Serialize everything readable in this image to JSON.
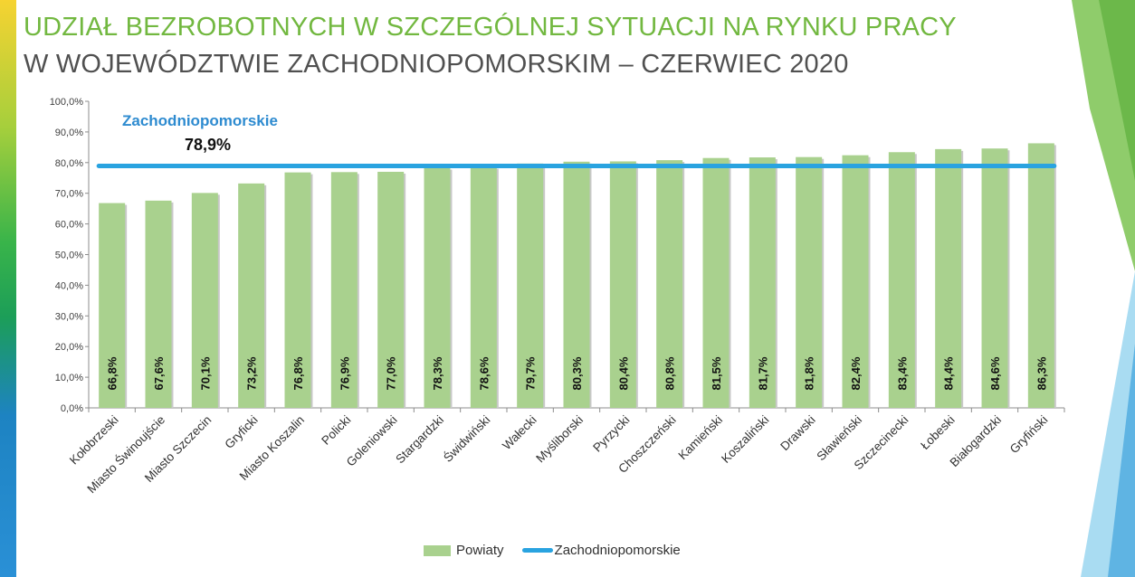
{
  "slide": {
    "title_line1": "UDZIAŁ BEZROBOTNYCH W SZCZEGÓLNEJ SYTUACJI NA RYNKU PRACY",
    "title_line2": "W WOJEWÓDZTWIE ZACHODNIOPOMORSKIM – CZERWIEC 2020"
  },
  "colors": {
    "title_green": "#72b840",
    "bar": "#a9d18e",
    "line": "#29a3e0",
    "avg_label": "#2e8bd0"
  },
  "chart_data": {
    "type": "bar",
    "categories": [
      "Kołobrzeski",
      "Miasto Świnoujście",
      "Miasto Szczecin",
      "Gryficki",
      "Miasto Koszalin",
      "Policki",
      "Goleniowski",
      "Stargardzki",
      "Świdwiński",
      "Wałecki",
      "Myśliborski",
      "Pyrzycki",
      "Choszczeński",
      "Kamieński",
      "Koszaliński",
      "Drawski",
      "Sławieński",
      "Szczecinecki",
      "Łobeski",
      "Białogardzki",
      "Gryfiński"
    ],
    "series": [
      {
        "name": "Powiaty",
        "values": [
          66.8,
          67.6,
          70.1,
          73.2,
          76.8,
          76.9,
          77.0,
          78.3,
          78.6,
          79.7,
          80.3,
          80.4,
          80.8,
          81.5,
          81.7,
          81.8,
          82.4,
          83.4,
          84.4,
          84.6,
          86.3
        ]
      },
      {
        "name": "Zachodniopomorskie",
        "value": 78.9
      }
    ],
    "data_labels": [
      "66,8%",
      "67,6%",
      "70,1%",
      "73,2%",
      "76,8%",
      "76,9%",
      "77,0%",
      "78,3%",
      "78,6%",
      "79,7%",
      "80,3%",
      "80,4%",
      "80,8%",
      "81,5%",
      "81,7%",
      "81,8%",
      "82,4%",
      "83,4%",
      "84,4%",
      "84,6%",
      "86,3%"
    ],
    "yticks": [
      "0,0%",
      "10,0%",
      "20,0%",
      "30,0%",
      "40,0%",
      "50,0%",
      "60,0%",
      "70,0%",
      "80,0%",
      "90,0%",
      "100,0%"
    ],
    "ylim": [
      0,
      100
    ],
    "avg_label": "Zachodniopomorskie",
    "avg_value_label": "78,9%",
    "legend": [
      "Powiaty",
      "Zachodniopomorskie"
    ],
    "legend_position": "bottom",
    "grid": false
  }
}
